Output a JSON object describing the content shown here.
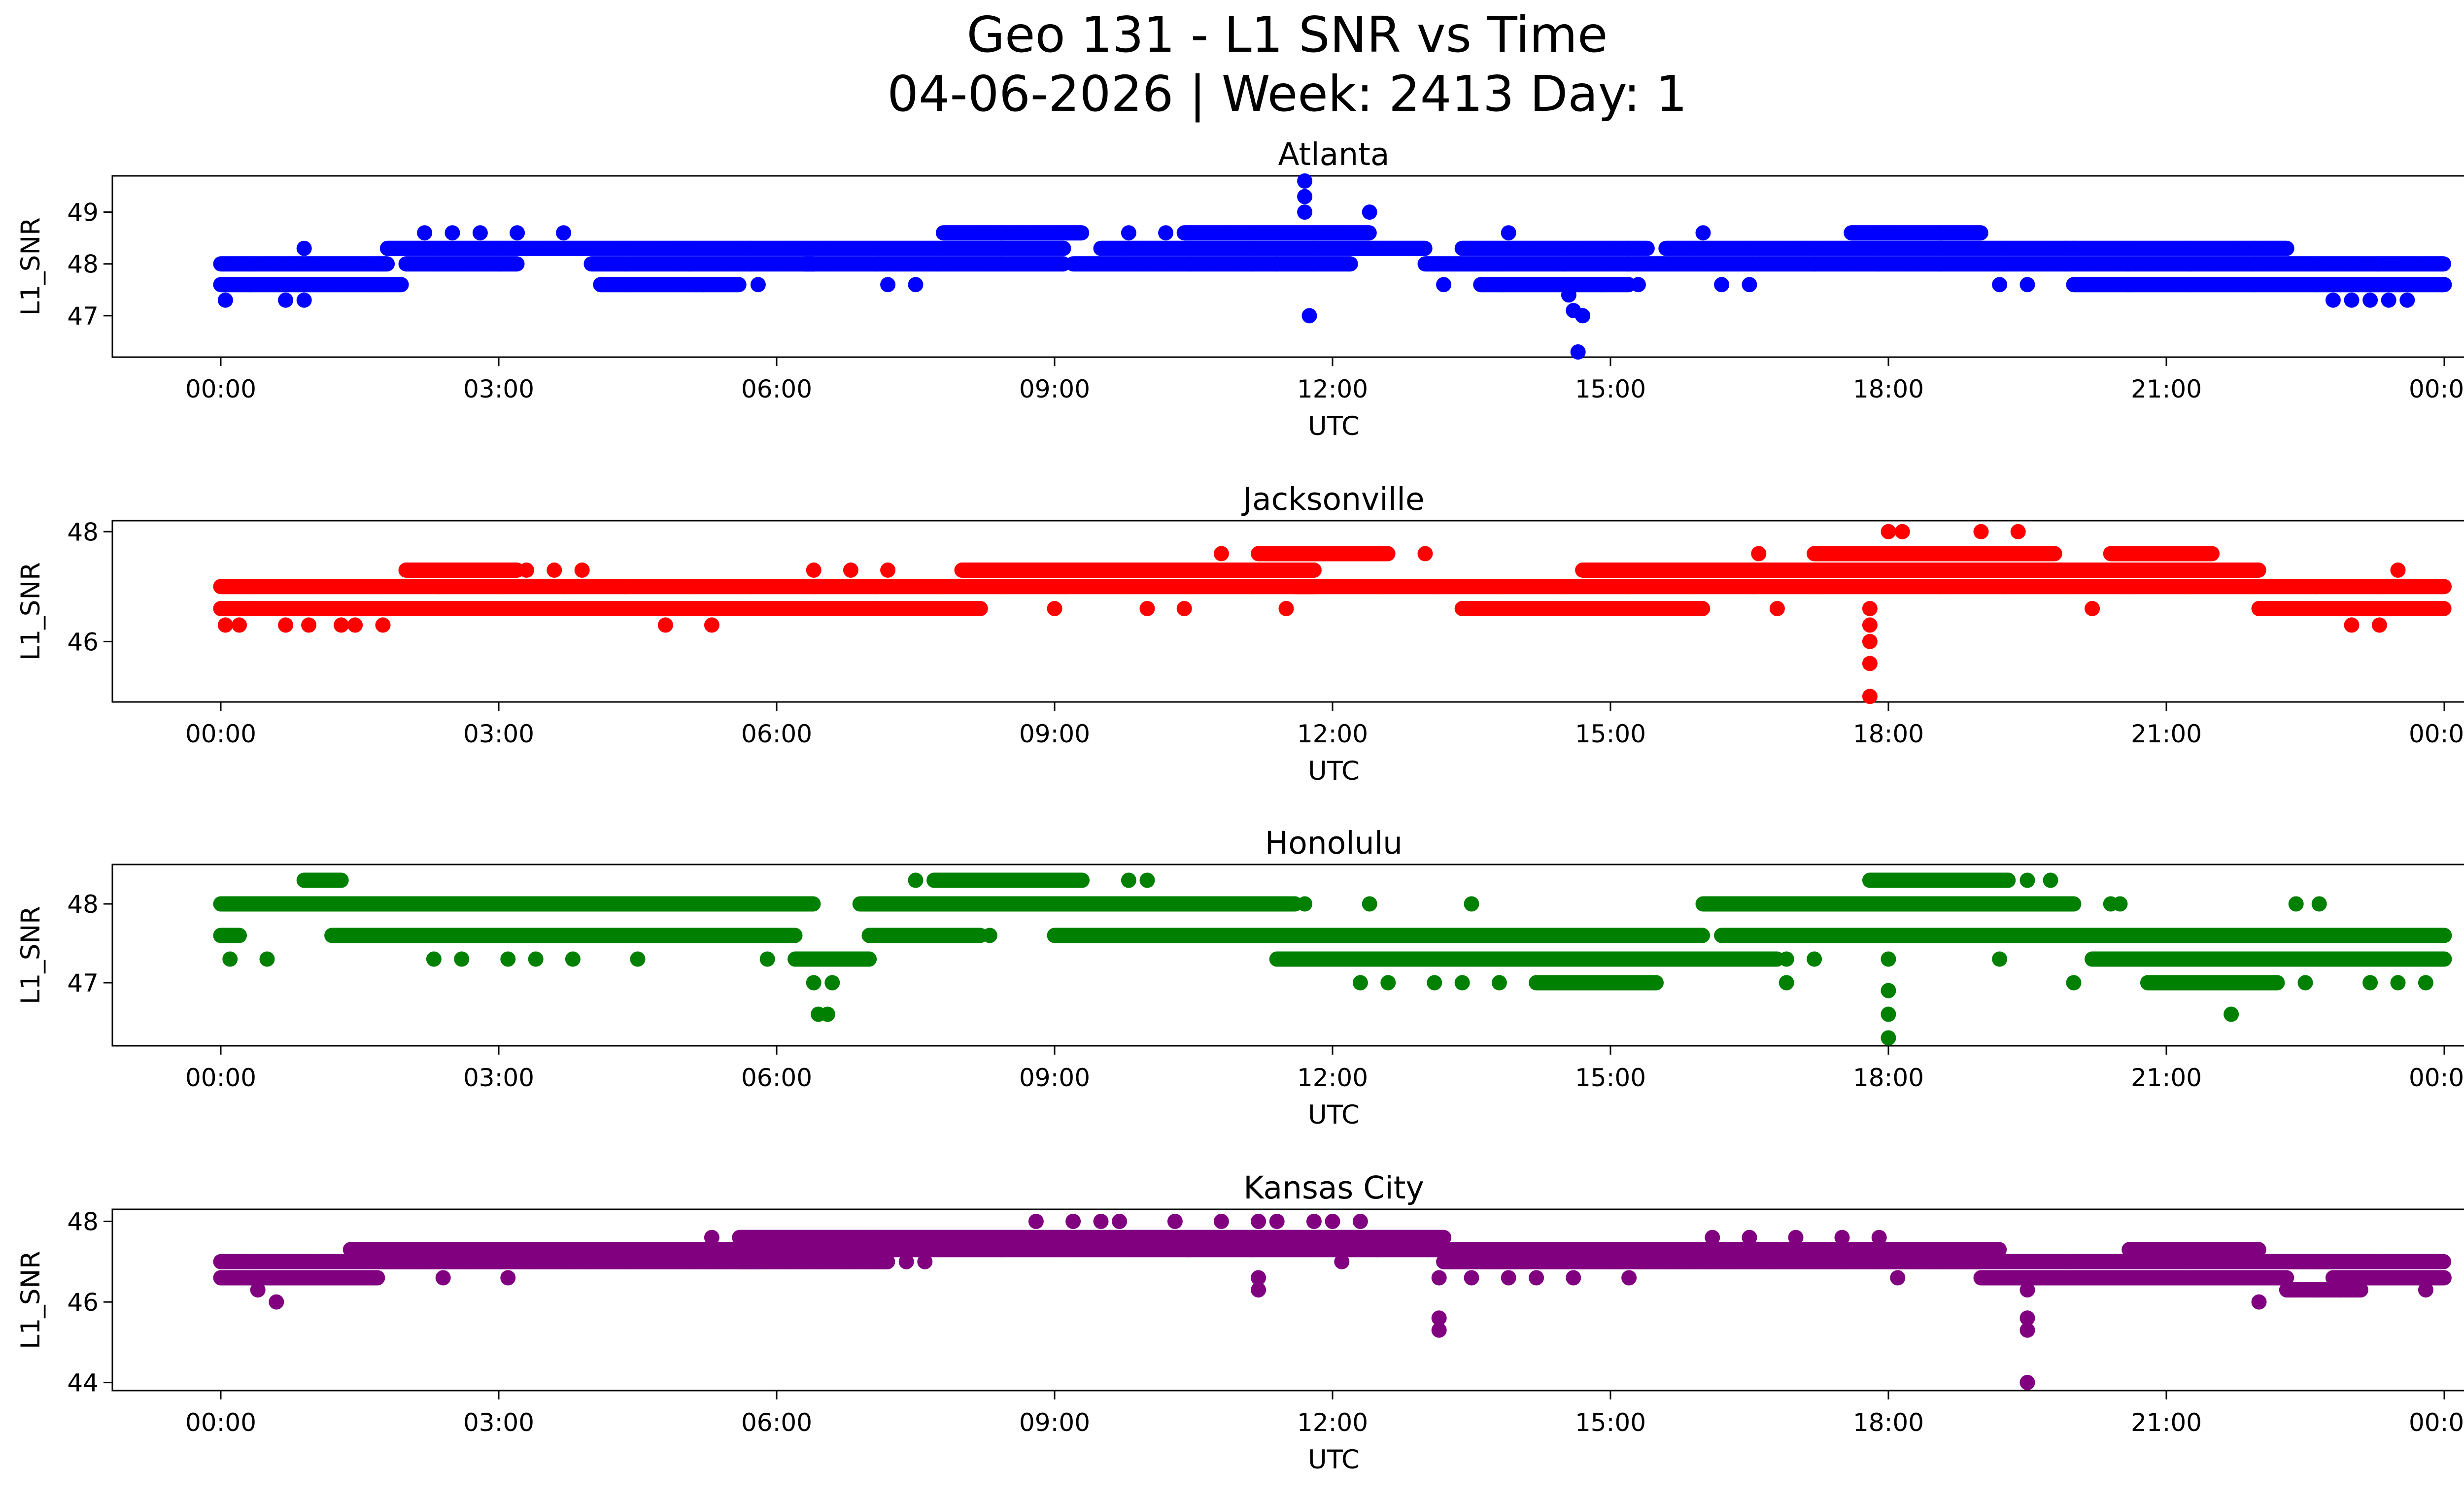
{
  "figure": {
    "title_line1": "Geo 131 - L1 SNR vs Time",
    "title_line2": "04-06-2026 | Week: 2413 Day: 1"
  },
  "chart_data": [
    {
      "type": "scatter",
      "title": "Atlanta",
      "xlabel": "UTC",
      "ylabel": "L1_SNR",
      "color": "#0000ff",
      "xlim": [
        0,
        24
      ],
      "ylim": [
        46.2,
        49.7
      ],
      "yticks": [
        47,
        48,
        49
      ],
      "xticks": [
        "00:00",
        "03:00",
        "06:00",
        "09:00",
        "12:00",
        "15:00",
        "18:00",
        "21:00",
        "00:00"
      ],
      "bands": [
        {
          "y": 48.0,
          "segments": [
            [
              0.0,
              1.8
            ],
            [
              2.0,
              3.2
            ],
            [
              4.0,
              6.4
            ],
            [
              6.3,
              9.1
            ],
            [
              9.2,
              12.2
            ],
            [
              13.0,
              24.0
            ]
          ]
        },
        {
          "y": 48.3,
          "segments": [
            [
              1.8,
              9.1
            ],
            [
              9.5,
              13.0
            ],
            [
              13.4,
              15.4
            ],
            [
              15.6,
              20.0
            ],
            [
              20.0,
              22.3
            ]
          ]
        },
        {
          "y": 47.6,
          "segments": [
            [
              0.0,
              1.95
            ],
            [
              4.1,
              5.6
            ],
            [
              13.6,
              15.2
            ],
            [
              20.0,
              24.0
            ]
          ]
        },
        {
          "y": 48.6,
          "segments": [
            [
              7.8,
              9.3
            ],
            [
              10.4,
              12.4
            ],
            [
              17.6,
              19.0
            ]
          ]
        }
      ],
      "points": [
        [
          0.05,
          47.3
        ],
        [
          0.7,
          47.3
        ],
        [
          0.9,
          47.3
        ],
        [
          0.9,
          48.3
        ],
        [
          2.2,
          48.6
        ],
        [
          2.5,
          48.6
        ],
        [
          2.8,
          48.6
        ],
        [
          3.2,
          48.6
        ],
        [
          3.7,
          48.6
        ],
        [
          5.2,
          47.6
        ],
        [
          5.8,
          47.6
        ],
        [
          7.2,
          47.6
        ],
        [
          7.5,
          47.6
        ],
        [
          9.8,
          48.6
        ],
        [
          10.2,
          48.6
        ],
        [
          11.4,
          48.0
        ],
        [
          11.7,
          49.6
        ],
        [
          11.7,
          49.3
        ],
        [
          11.7,
          49.0
        ],
        [
          11.75,
          47.0
        ],
        [
          12.4,
          49.0
        ],
        [
          13.2,
          47.6
        ],
        [
          13.9,
          48.6
        ],
        [
          14.55,
          47.4
        ],
        [
          14.6,
          47.1
        ],
        [
          14.65,
          46.3
        ],
        [
          14.7,
          47.0
        ],
        [
          14.9,
          47.6
        ],
        [
          15.3,
          47.6
        ],
        [
          16.0,
          48.6
        ],
        [
          16.2,
          47.6
        ],
        [
          16.5,
          47.6
        ],
        [
          19.2,
          47.6
        ],
        [
          19.5,
          47.6
        ],
        [
          22.8,
          47.3
        ],
        [
          23.0,
          47.3
        ],
        [
          23.2,
          47.3
        ],
        [
          23.4,
          47.3
        ],
        [
          23.6,
          47.3
        ]
      ]
    },
    {
      "type": "scatter",
      "title": "Jacksonville",
      "xlabel": "UTC",
      "ylabel": "L1_SNR",
      "color": "#ff0000",
      "xlim": [
        0,
        24
      ],
      "ylim": [
        44.9,
        48.2
      ],
      "yticks": [
        46,
        48
      ],
      "xticks": [
        "00:00",
        "03:00",
        "06:00",
        "09:00",
        "12:00",
        "15:00",
        "18:00",
        "21:00",
        "00:00"
      ],
      "bands": [
        {
          "y": 47.0,
          "segments": [
            [
              0.0,
              11.8
            ],
            [
              11.6,
              24.0
            ]
          ]
        },
        {
          "y": 46.6,
          "segments": [
            [
              0.0,
              8.2
            ],
            [
              13.4,
              16.0
            ],
            [
              22.0,
              24.0
            ]
          ]
        },
        {
          "y": 47.3,
          "segments": [
            [
              2.0,
              3.2
            ],
            [
              8.0,
              11.8
            ],
            [
              14.7,
              22.0
            ]
          ]
        },
        {
          "y": 47.6,
          "segments": [
            [
              11.2,
              12.6
            ],
            [
              17.2,
              19.8
            ],
            [
              20.4,
              21.5
            ]
          ]
        }
      ],
      "points": [
        [
          0.05,
          46.3
        ],
        [
          0.2,
          46.3
        ],
        [
          0.7,
          46.3
        ],
        [
          0.95,
          46.3
        ],
        [
          1.3,
          46.3
        ],
        [
          1.45,
          46.3
        ],
        [
          1.75,
          46.3
        ],
        [
          4.8,
          46.3
        ],
        [
          5.3,
          46.3
        ],
        [
          3.3,
          47.3
        ],
        [
          3.6,
          47.3
        ],
        [
          3.9,
          47.3
        ],
        [
          6.4,
          47.3
        ],
        [
          6.8,
          47.3
        ],
        [
          7.2,
          47.3
        ],
        [
          9.0,
          46.6
        ],
        [
          10.0,
          46.6
        ],
        [
          10.4,
          46.6
        ],
        [
          10.8,
          47.6
        ],
        [
          11.5,
          46.6
        ],
        [
          13.0,
          47.6
        ],
        [
          16.6,
          47.6
        ],
        [
          16.8,
          46.6
        ],
        [
          17.8,
          46.6
        ],
        [
          17.8,
          46.3
        ],
        [
          17.8,
          46.0
        ],
        [
          17.8,
          45.6
        ],
        [
          17.8,
          45.0
        ],
        [
          18.0,
          48.0
        ],
        [
          18.15,
          48.0
        ],
        [
          19.0,
          48.0
        ],
        [
          19.4,
          48.0
        ],
        [
          20.2,
          46.6
        ],
        [
          23.0,
          46.3
        ],
        [
          23.3,
          46.3
        ],
        [
          23.5,
          47.3
        ]
      ]
    },
    {
      "type": "scatter",
      "title": "Honolulu",
      "xlabel": "UTC",
      "ylabel": "L1_SNR",
      "color": "#008000",
      "xlim": [
        0,
        24
      ],
      "ylim": [
        46.2,
        48.5
      ],
      "yticks": [
        47,
        48
      ],
      "xticks": [
        "00:00",
        "03:00",
        "06:00",
        "09:00",
        "12:00",
        "15:00",
        "18:00",
        "21:00",
        "00:00"
      ],
      "bands": [
        {
          "y": 48.0,
          "segments": [
            [
              0.0,
              6.4
            ],
            [
              6.9,
              11.6
            ],
            [
              16.0,
              20.0
            ]
          ]
        },
        {
          "y": 47.6,
          "segments": [
            [
              0.0,
              0.2
            ],
            [
              1.2,
              6.2
            ],
            [
              7.0,
              8.2
            ],
            [
              9.0,
              16.0
            ],
            [
              16.2,
              24.0
            ]
          ]
        },
        {
          "y": 47.3,
          "segments": [
            [
              6.2,
              7.0
            ],
            [
              11.4,
              16.8
            ],
            [
              20.2,
              24.0
            ]
          ]
        },
        {
          "y": 47.0,
          "segments": [
            [
              14.2,
              15.5
            ],
            [
              20.8,
              22.2
            ]
          ]
        },
        {
          "y": 48.3,
          "segments": [
            [
              0.9,
              1.3
            ],
            [
              7.7,
              9.3
            ],
            [
              17.8,
              19.3
            ]
          ]
        }
      ],
      "points": [
        [
          0.1,
          47.3
        ],
        [
          0.5,
          47.3
        ],
        [
          2.3,
          47.3
        ],
        [
          2.6,
          47.3
        ],
        [
          3.1,
          47.3
        ],
        [
          3.4,
          47.3
        ],
        [
          3.8,
          47.3
        ],
        [
          4.5,
          47.3
        ],
        [
          5.9,
          47.3
        ],
        [
          6.4,
          47.0
        ],
        [
          6.6,
          47.0
        ],
        [
          6.45,
          46.6
        ],
        [
          6.55,
          46.6
        ],
        [
          7.5,
          48.3
        ],
        [
          9.8,
          48.3
        ],
        [
          10.0,
          48.3
        ],
        [
          8.3,
          47.6
        ],
        [
          11.7,
          48.0
        ],
        [
          12.4,
          48.0
        ],
        [
          13.5,
          48.0
        ],
        [
          12.3,
          47.0
        ],
        [
          12.6,
          47.0
        ],
        [
          13.1,
          47.0
        ],
        [
          13.4,
          47.0
        ],
        [
          13.8,
          47.0
        ],
        [
          16.9,
          47.3
        ],
        [
          17.2,
          47.3
        ],
        [
          16.9,
          47.0
        ],
        [
          18.0,
          47.3
        ],
        [
          18.0,
          46.9
        ],
        [
          18.0,
          46.6
        ],
        [
          18.0,
          46.3
        ],
        [
          19.5,
          48.3
        ],
        [
          19.75,
          48.3
        ],
        [
          20.4,
          48.0
        ],
        [
          20.5,
          48.0
        ],
        [
          19.2,
          47.3
        ],
        [
          20.0,
          47.0
        ],
        [
          21.7,
          46.6
        ],
        [
          22.4,
          48.0
        ],
        [
          22.65,
          48.0
        ],
        [
          22.5,
          47.0
        ],
        [
          23.2,
          47.0
        ],
        [
          23.5,
          47.0
        ],
        [
          23.8,
          47.0
        ]
      ]
    },
    {
      "type": "scatter",
      "title": "Kansas City",
      "xlabel": "UTC",
      "ylabel": "L1_SNR",
      "color": "#800080",
      "xlim": [
        0,
        24
      ],
      "ylim": [
        43.8,
        48.3
      ],
      "yticks": [
        44,
        46,
        48
      ],
      "xticks": [
        "00:00",
        "03:00",
        "06:00",
        "09:00",
        "12:00",
        "15:00",
        "18:00",
        "21:00",
        "00:00"
      ],
      "bands": [
        {
          "y": 47.0,
          "segments": [
            [
              0.0,
              5.8
            ],
            [
              5.6,
              7.2
            ],
            [
              13.2,
              24.0
            ]
          ]
        },
        {
          "y": 46.6,
          "segments": [
            [
              0.0,
              1.7
            ],
            [
              19.0,
              22.3
            ],
            [
              22.8,
              24.0
            ]
          ]
        },
        {
          "y": 47.3,
          "segments": [
            [
              1.4,
              13.2
            ],
            [
              13.2,
              19.2
            ],
            [
              20.6,
              22.0
            ]
          ]
        },
        {
          "y": 47.6,
          "segments": [
            [
              5.6,
              13.2
            ]
          ]
        },
        {
          "y": 46.3,
          "segments": [
            [
              22.3,
              23.1
            ]
          ]
        }
      ],
      "points": [
        [
          0.4,
          46.3
        ],
        [
          0.6,
          46.0
        ],
        [
          2.4,
          46.6
        ],
        [
          3.1,
          46.6
        ],
        [
          5.3,
          47.6
        ],
        [
          7.4,
          47.0
        ],
        [
          7.6,
          47.0
        ],
        [
          8.8,
          48.0
        ],
        [
          9.2,
          48.0
        ],
        [
          9.5,
          48.0
        ],
        [
          9.7,
          48.0
        ],
        [
          10.3,
          48.0
        ],
        [
          10.8,
          48.0
        ],
        [
          11.2,
          48.0
        ],
        [
          11.4,
          48.0
        ],
        [
          11.8,
          48.0
        ],
        [
          12.0,
          48.0
        ],
        [
          12.3,
          48.0
        ],
        [
          11.2,
          46.6
        ],
        [
          11.2,
          46.3
        ],
        [
          12.1,
          47.0
        ],
        [
          13.15,
          46.6
        ],
        [
          13.15,
          45.6
        ],
        [
          13.15,
          45.3
        ],
        [
          13.5,
          46.6
        ],
        [
          13.9,
          46.6
        ],
        [
          14.2,
          46.6
        ],
        [
          14.6,
          46.6
        ],
        [
          15.2,
          46.6
        ],
        [
          16.1,
          47.6
        ],
        [
          16.5,
          47.6
        ],
        [
          17.0,
          47.6
        ],
        [
          17.5,
          47.6
        ],
        [
          17.9,
          47.6
        ],
        [
          18.1,
          46.6
        ],
        [
          19.5,
          46.3
        ],
        [
          19.5,
          45.6
        ],
        [
          19.5,
          45.3
        ],
        [
          19.5,
          44.0
        ],
        [
          22.0,
          46.0
        ],
        [
          22.3,
          46.3
        ],
        [
          22.6,
          46.3
        ],
        [
          23.8,
          46.3
        ]
      ]
    }
  ]
}
